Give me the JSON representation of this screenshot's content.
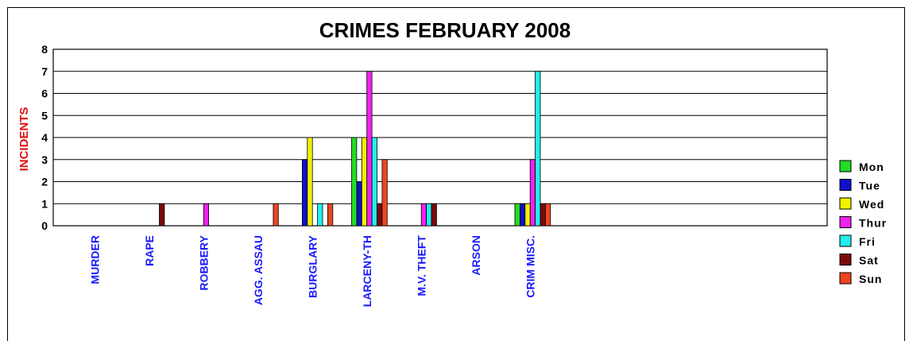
{
  "chart_data": {
    "type": "bar",
    "title": "CRIMES FEBRUARY 2008",
    "ylabel": "INCIDENTS",
    "xlabel": "",
    "ylim": [
      0,
      8
    ],
    "yticks": [
      "0",
      "1",
      "2",
      "3",
      "4",
      "5",
      "6",
      "7",
      "8"
    ],
    "grid": true,
    "legend_position": "right",
    "categories": [
      "MURDER",
      "RAPE",
      "ROBBERY",
      "AGG. ASSAU",
      "BURGLARY",
      "LARCENY-TH",
      "M.V. THEFT",
      "ARSON",
      "CRIM MISC."
    ],
    "series": [
      {
        "name": "Mon",
        "color": "#22dd22",
        "values": [
          0,
          0,
          0,
          0,
          0,
          4,
          0,
          0,
          1
        ]
      },
      {
        "name": "Tue",
        "color": "#1010cc",
        "values": [
          0,
          0,
          0,
          0,
          3,
          2,
          0,
          0,
          1
        ]
      },
      {
        "name": "Wed",
        "color": "#f2f200",
        "values": [
          0,
          0,
          0,
          0,
          4,
          4,
          0,
          0,
          1
        ]
      },
      {
        "name": "Thur",
        "color": "#ee22ee",
        "values": [
          0,
          0,
          1,
          0,
          0,
          7,
          1,
          0,
          3
        ]
      },
      {
        "name": "Fri",
        "color": "#22eeee",
        "values": [
          0,
          0,
          0,
          0,
          1,
          4,
          1,
          0,
          7
        ]
      },
      {
        "name": "Sat",
        "color": "#7a0a0a",
        "values": [
          0,
          1,
          0,
          0,
          0,
          1,
          1,
          0,
          1
        ]
      },
      {
        "name": "Sun",
        "color": "#ee4422",
        "values": [
          0,
          0,
          0,
          1,
          1,
          3,
          0,
          0,
          1
        ]
      }
    ]
  }
}
